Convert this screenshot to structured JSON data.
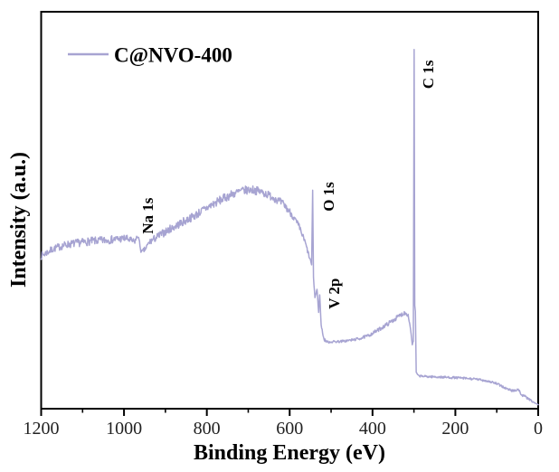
{
  "figure": {
    "background": "#ffffff",
    "axis_color": "#000000",
    "tick_label_color": "#222222"
  },
  "legend": {
    "label": "C@NVO-400",
    "line_color": "#a7a4d2"
  },
  "chart_data": {
    "type": "line",
    "title": "",
    "xlabel": "Binding Energy (eV)",
    "ylabel": "Intensity (a.u.)",
    "legend_position": "upper-left-inside",
    "grid": false,
    "x_axis": {
      "min": 0,
      "max": 1200,
      "reversed": true,
      "major_ticks": [
        1200,
        1000,
        800,
        600,
        400,
        200,
        0
      ],
      "major_tick_labels": [
        "1200",
        "1000",
        "800",
        "600",
        "400",
        "200",
        "0"
      ],
      "minor_ticks": [
        1100,
        900,
        700,
        500,
        300,
        100
      ]
    },
    "y_axis": {
      "min": 0,
      "max": 100,
      "ticks": [],
      "tick_labels": []
    },
    "noise_seed": 7,
    "annotations": [
      {
        "label": "Na 1s",
        "ev": 930,
        "intensity": 44.0,
        "rotation": -90
      },
      {
        "label": "O 1s",
        "ev": 493,
        "intensity": 49.7,
        "rotation": -90
      },
      {
        "label": "V 2p",
        "ev": 480,
        "intensity": 25.1,
        "rotation": -90
      },
      {
        "label": "C 1s",
        "ev": 253,
        "intensity": 80.6,
        "rotation": -90
      }
    ],
    "series": [
      {
        "name": "C@NVO-400",
        "color": "#a7a4d2",
        "stroke_width": 1.5,
        "points_format": [
          "binding_energy_eV",
          "intensity_au",
          "noise_amplitude"
        ],
        "points": [
          [
            1200,
            38.5,
            0.9
          ],
          [
            1170,
            40.3,
            0.9
          ],
          [
            1140,
            41.3,
            0.95
          ],
          [
            1110,
            41.8,
            1.0
          ],
          [
            1080,
            42.2,
            1.0
          ],
          [
            1050,
            42.4,
            1.0
          ],
          [
            1020,
            42.7,
            1.0
          ],
          [
            995,
            42.9,
            0.95
          ],
          [
            975,
            42.0,
            0.8
          ],
          [
            966,
            43.6,
            0.5
          ],
          [
            958,
            39.3,
            0.6
          ],
          [
            948,
            40.3,
            0.7
          ],
          [
            938,
            42.0,
            0.9
          ],
          [
            915,
            43.6,
            1.0
          ],
          [
            890,
            45.2,
            1.0
          ],
          [
            860,
            46.9,
            1.05
          ],
          [
            830,
            48.6,
            1.05
          ],
          [
            800,
            50.6,
            1.1
          ],
          [
            770,
            52.4,
            1.1
          ],
          [
            740,
            54.0,
            1.1
          ],
          [
            715,
            54.9,
            1.1
          ],
          [
            690,
            55.2,
            1.05
          ],
          [
            665,
            54.5,
            1.05
          ],
          [
            640,
            53.3,
            1.0
          ],
          [
            615,
            51.5,
            1.0
          ],
          [
            595,
            49.0,
            0.9
          ],
          [
            578,
            46.0,
            0.8
          ],
          [
            563,
            42.0,
            0.7
          ],
          [
            552,
            38.0,
            0.5
          ],
          [
            547,
            36.3,
            0.4
          ],
          [
            544.5,
            55.0,
            0.05
          ],
          [
            542.5,
            33.0,
            0.3
          ],
          [
            539,
            28.0,
            0.4
          ],
          [
            534,
            30.0,
            0.3
          ],
          [
            530,
            24.5,
            0.4
          ],
          [
            527.5,
            28.8,
            0.15
          ],
          [
            524,
            21.0,
            0.35
          ],
          [
            517,
            17.4,
            0.35
          ],
          [
            508,
            16.8,
            0.3
          ],
          [
            490,
            16.9,
            0.3
          ],
          [
            470,
            17.0,
            0.3
          ],
          [
            450,
            17.3,
            0.32
          ],
          [
            430,
            17.7,
            0.35
          ],
          [
            410,
            18.4,
            0.4
          ],
          [
            390,
            19.6,
            0.45
          ],
          [
            370,
            20.9,
            0.5
          ],
          [
            350,
            22.3,
            0.55
          ],
          [
            335,
            23.4,
            0.55
          ],
          [
            322,
            24.2,
            0.55
          ],
          [
            314,
            23.6,
            0.4
          ],
          [
            308,
            20.0,
            0.25
          ],
          [
            304,
            16.2,
            0.15
          ],
          [
            301.5,
            17.0,
            0.1
          ],
          [
            299.5,
            90.5,
            0.02
          ],
          [
            298,
            26.0,
            0.05
          ],
          [
            296.5,
            24.5,
            0.05
          ],
          [
            294.5,
            9.2,
            0.1
          ],
          [
            290,
            8.3,
            0.25
          ],
          [
            270,
            8.1,
            0.28
          ],
          [
            245,
            8.0,
            0.28
          ],
          [
            220,
            7.9,
            0.28
          ],
          [
            195,
            7.8,
            0.28
          ],
          [
            170,
            7.6,
            0.28
          ],
          [
            148,
            7.4,
            0.28
          ],
          [
            128,
            7.1,
            0.28
          ],
          [
            108,
            6.6,
            0.3
          ],
          [
            90,
            5.8,
            0.3
          ],
          [
            74,
            4.9,
            0.3
          ],
          [
            60,
            4.5,
            0.35
          ],
          [
            48,
            4.9,
            0.35
          ],
          [
            40,
            3.4,
            0.3
          ],
          [
            32,
            3.1,
            0.3
          ],
          [
            24,
            2.5,
            0.25
          ],
          [
            14,
            1.8,
            0.2
          ],
          [
            6,
            1.3,
            0.12
          ],
          [
            0,
            1.0,
            0.08
          ]
        ]
      }
    ]
  }
}
